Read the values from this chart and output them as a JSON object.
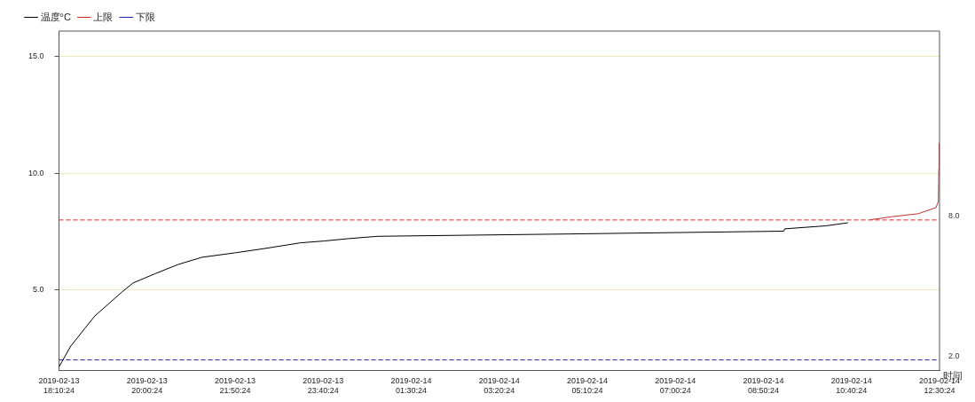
{
  "chart_data": {
    "type": "line",
    "xlabel": "时间",
    "xlim": [
      "2019-02-13T18:10:24",
      "2019-02-14T12:30:24"
    ],
    "xticks": [
      {
        "value": "2019-02-13T18:10:24",
        "label": "2019-02-13\n18:10:24"
      },
      {
        "value": "2019-02-13T20:00:24",
        "label": "2019-02-13\n20:00:24"
      },
      {
        "value": "2019-02-13T21:50:24",
        "label": "2019-02-13\n21:50:24"
      },
      {
        "value": "2019-02-13T23:40:24",
        "label": "2019-02-13\n23:40:24"
      },
      {
        "value": "2019-02-14T01:30:24",
        "label": "2019-02-14\n01:30:24"
      },
      {
        "value": "2019-02-14T03:20:24",
        "label": "2019-02-14\n03:20:24"
      },
      {
        "value": "2019-02-14T05:10:24",
        "label": "2019-02-14\n05:10:24"
      },
      {
        "value": "2019-02-14T07:00:24",
        "label": "2019-02-14\n07:00:24"
      },
      {
        "value": "2019-02-14T08:50:24",
        "label": "2019-02-14\n08:50:24"
      },
      {
        "value": "2019-02-14T10:40:24",
        "label": "2019-02-14\n10:40:24"
      },
      {
        "value": "2019-02-14T12:30:24",
        "label": "2019-02-14\n12:30:24"
      }
    ],
    "ylim": [
      1.55,
      16.1
    ],
    "yticks": [
      {
        "value": 5,
        "label": "5.0"
      },
      {
        "value": 10,
        "label": "10.0"
      },
      {
        "value": 15,
        "label": "15.0"
      }
    ],
    "grid": "y",
    "legend": "top left",
    "marker": "none",
    "series": [
      {
        "name": "温度°C",
        "color": "#000000",
        "x": [
          "2019-02-13T18:10:24",
          "2019-02-13T18:25",
          "2019-02-13T18:55",
          "2019-02-13T19:29",
          "2019-02-13T19:43",
          "2019-02-13T20:10",
          "2019-02-13T20:39",
          "2019-02-13T21:09",
          "2019-02-13T21:50",
          "2019-02-13T22:28",
          "2019-02-13T23:12",
          "2019-02-13T23:42",
          "2019-02-14T00:12",
          "2019-02-14T00:49",
          "2019-02-14T04:48",
          "2019-02-14T09:16",
          "2019-02-14T09:17",
          "2019-02-14T10:09",
          "2019-02-14T10:36"
        ],
        "values": [
          1.7,
          2.59,
          3.88,
          4.91,
          5.3,
          5.69,
          6.09,
          6.4,
          6.59,
          6.78,
          7.02,
          7.1,
          7.2,
          7.3,
          7.4,
          7.52,
          7.62,
          7.75,
          7.88
        ]
      },
      {
        "color": "#c03030",
        "x": [
          "2019-02-14T11:04",
          "2019-02-14T11:31",
          "2019-02-14T12:04",
          "2019-02-14T12:26",
          "2019-02-14T12:29",
          "2019-02-14T12:29:30",
          "2019-02-14T12:30"
        ],
        "values": [
          8.01,
          8.14,
          8.27,
          8.53,
          8.8,
          10.2,
          11.3
        ]
      },
      {
        "name": "上限",
        "color": "#e02020",
        "line_style": "dashed",
        "x": [
          "2019-02-13T18:10:24",
          "2019-02-14T12:30:24"
        ],
        "values": [
          8,
          8
        ]
      },
      {
        "name": "下限",
        "color": "#2020b0",
        "line_style": "dashed",
        "x": [
          "2019-02-13T18:10:24",
          "2019-02-14T12:30:24"
        ],
        "values": [
          2,
          2
        ]
      }
    ],
    "annotations": [
      {
        "text": "8.0",
        "x": "2019-02-14T12:30:24",
        "y": 8
      },
      {
        "text": "2.0",
        "x": "2019-02-14T12:30:24",
        "y": 2
      }
    ]
  }
}
